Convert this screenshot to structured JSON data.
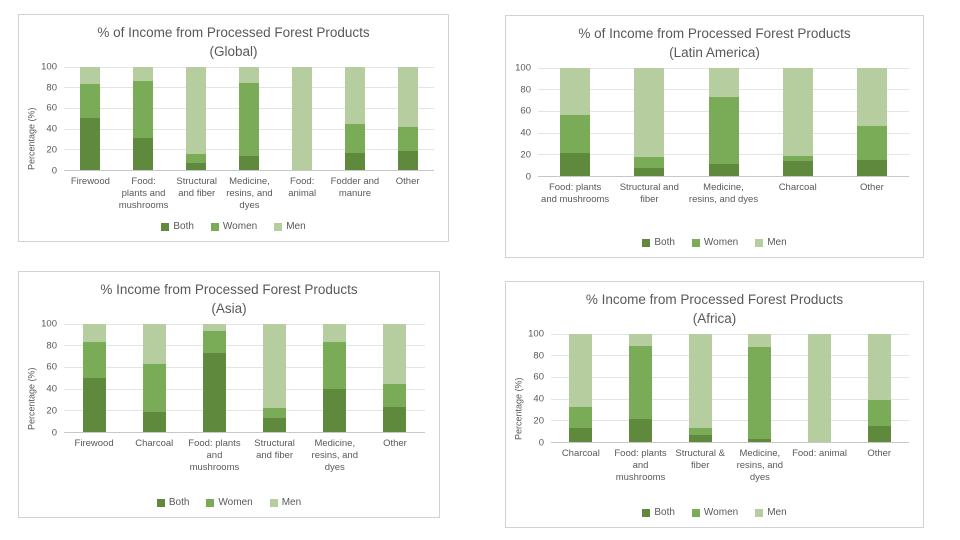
{
  "page": {
    "background": "#ffffff"
  },
  "palette": {
    "both": "#5f8a3e",
    "women": "#7aac58",
    "men": "#b6cda0"
  },
  "chart_data": [
    {
      "type": "bar",
      "stacked": true,
      "title": "% of Income from Processed Forest Products",
      "subtitle": "(Global)",
      "ylabel": "Percentage (%)",
      "xlabel": "",
      "ylim": [
        0,
        100
      ],
      "yticks": [
        0,
        20,
        40,
        60,
        80,
        100
      ],
      "grid": true,
      "legend_position": "bottom",
      "categories": [
        "Firewood",
        "Food: plants and mushrooms",
        "Structural and fiber",
        "Medicine, resins, and dyes",
        "Food: animal",
        "Fodder and manure",
        "Other"
      ],
      "series": [
        {
          "name": "Both",
          "color": "#5f8a3e",
          "values": [
            50,
            31,
            7,
            13,
            0,
            16,
            18
          ]
        },
        {
          "name": "Women",
          "color": "#7aac58",
          "values": [
            33,
            55,
            8,
            71,
            0,
            28,
            24
          ]
        },
        {
          "name": "Men",
          "color": "#b6cda0",
          "values": [
            17,
            14,
            85,
            16,
            100,
            56,
            58
          ]
        }
      ]
    },
    {
      "type": "bar",
      "stacked": true,
      "title": "% of Income from Processed Forest Products",
      "subtitle": "(Latin America)",
      "ylabel": "",
      "xlabel": "",
      "ylim": [
        0,
        100
      ],
      "yticks": [
        0,
        20,
        40,
        60,
        80,
        100
      ],
      "grid": true,
      "legend_position": "bottom",
      "categories": [
        "Food: plants and mushrooms",
        "Structural and fiber",
        "Medicine, resins, and dyes",
        "Charcoal",
        "Other"
      ],
      "series": [
        {
          "name": "Both",
          "color": "#5f8a3e",
          "values": [
            21,
            7,
            11,
            14,
            15
          ]
        },
        {
          "name": "Women",
          "color": "#7aac58",
          "values": [
            35,
            10,
            62,
            4,
            31
          ]
        },
        {
          "name": "Men",
          "color": "#b6cda0",
          "values": [
            44,
            83,
            27,
            82,
            54
          ]
        }
      ]
    },
    {
      "type": "bar",
      "stacked": true,
      "title": "% Income from Processed Forest Products",
      "subtitle": "(Asia)",
      "ylabel": "Percentage (%)",
      "xlabel": "",
      "ylim": [
        0,
        100
      ],
      "yticks": [
        0,
        20,
        40,
        60,
        80,
        100
      ],
      "grid": true,
      "legend_position": "bottom",
      "categories": [
        "Firewood",
        "Charcoal",
        "Food: plants and mushrooms",
        "Structural and fiber",
        "Medicine, resins, and dyes",
        "Other"
      ],
      "series": [
        {
          "name": "Both",
          "color": "#5f8a3e",
          "values": [
            50,
            18,
            73,
            13,
            40,
            23
          ]
        },
        {
          "name": "Women",
          "color": "#7aac58",
          "values": [
            33,
            45,
            20,
            9,
            43,
            21
          ]
        },
        {
          "name": "Men",
          "color": "#b6cda0",
          "values": [
            17,
            37,
            7,
            78,
            17,
            56
          ]
        }
      ]
    },
    {
      "type": "bar",
      "stacked": true,
      "title": "% Income from Processed Forest Products",
      "subtitle": "(Africa)",
      "ylabel": "Percentage (%)",
      "xlabel": "",
      "ylim": [
        0,
        100
      ],
      "yticks": [
        0,
        20,
        40,
        60,
        80,
        100
      ],
      "grid": true,
      "legend_position": "bottom",
      "categories": [
        "Charcoal",
        "Food: plants and mushrooms",
        "Structural & fiber",
        "Medicine, resins, and dyes",
        "Food: animal",
        "Other"
      ],
      "series": [
        {
          "name": "Both",
          "color": "#5f8a3e",
          "values": [
            13,
            21,
            6,
            3,
            0,
            15
          ]
        },
        {
          "name": "Women",
          "color": "#7aac58",
          "values": [
            19,
            68,
            7,
            85,
            0,
            24
          ]
        },
        {
          "name": "Men",
          "color": "#b6cda0",
          "values": [
            68,
            11,
            87,
            12,
            100,
            61
          ]
        }
      ]
    }
  ]
}
